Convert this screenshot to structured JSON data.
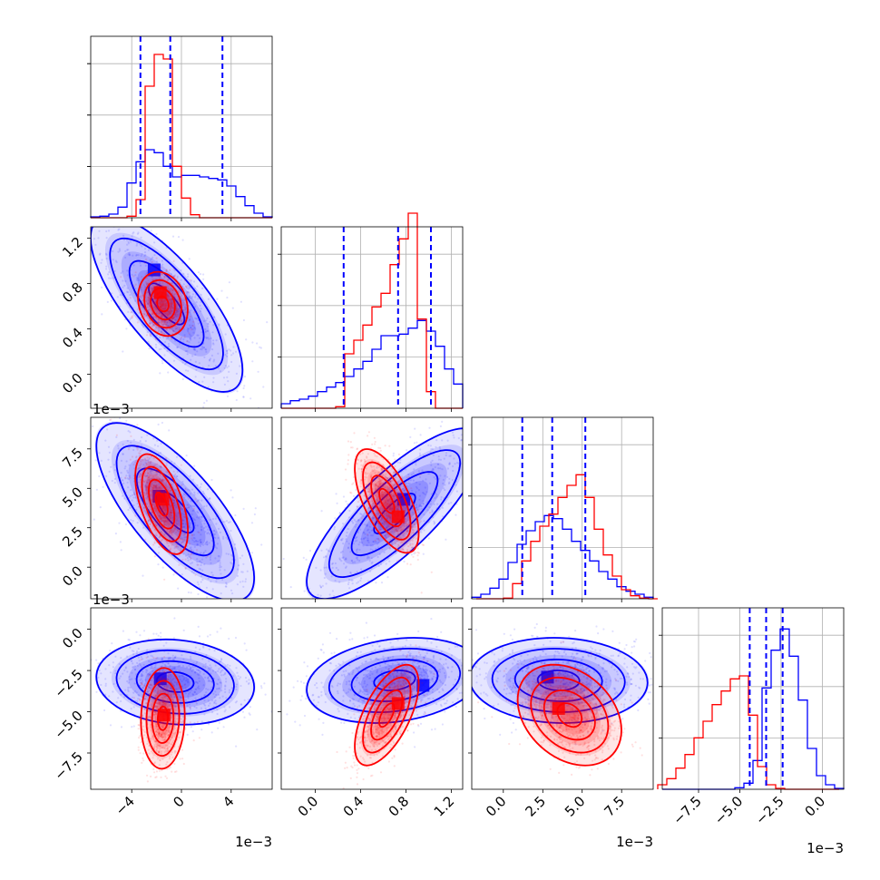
{
  "chart_data": {
    "type": "corner",
    "colors": {
      "blue": "#0000ff",
      "red": "#ff0000"
    },
    "series": [
      {
        "color": "blue",
        "marker": "blue-scatter-and-contours"
      },
      {
        "color": "red",
        "marker": "red-scatter-and-contours"
      }
    ],
    "parameters": [
      {
        "range": [
          -0.0073,
          0.0073
        ],
        "ticks": [
          -0.004,
          0.0,
          0.004
        ],
        "tick_labels": [
          "−4",
          "0",
          "4"
        ],
        "offset_label": "1e−3"
      },
      {
        "range": [
          -0.3,
          1.3
        ],
        "ticks": [
          0.0,
          0.4,
          0.8,
          1.2
        ],
        "tick_labels": [
          "0.0",
          "0.4",
          "0.8",
          "1.2"
        ],
        "offset_label": ""
      },
      {
        "range": [
          -0.002,
          0.0095
        ],
        "ticks": [
          0.0,
          0.0025,
          0.005,
          0.0075
        ],
        "tick_labels": [
          "0.0",
          "2.5",
          "5.0",
          "7.5"
        ],
        "offset_label": "1e−3"
      },
      {
        "range": [
          -0.0097,
          0.0013
        ],
        "ticks": [
          -0.0075,
          -0.005,
          -0.0025,
          0.0
        ],
        "tick_labels": [
          "−7.5",
          "−5.0",
          "−2.5",
          "0.0"
        ],
        "offset_label": "1e−3"
      }
    ],
    "y_offset_labels": [
      {
        "row": 2,
        "text": "1e−3"
      },
      {
        "row": 3,
        "text": "1e−3"
      }
    ],
    "diagonal": [
      {
        "quantiles": [
          -0.0033,
          -0.0009,
          0.0033
        ],
        "blue": [
          0.3,
          0.5,
          1.2,
          3.5,
          11.5,
          18.5,
          22.5,
          21.5,
          17.0,
          13.5,
          14.0,
          14.0,
          13.5,
          13.0,
          12.5,
          10.5,
          7.0,
          4.0,
          1.5,
          0.3
        ],
        "red": [
          0,
          0,
          0,
          0,
          0.5,
          6.0,
          43.5,
          54.0,
          52.5,
          17.0,
          6.5,
          1.0,
          0,
          0,
          0,
          0,
          0,
          0,
          0,
          0
        ]
      },
      {
        "quantiles": [
          0.25,
          0.73,
          1.02
        ],
        "blue": [
          1.5,
          2.5,
          3.0,
          4.0,
          5.5,
          7.0,
          8.5,
          10.5,
          13.0,
          15.5,
          19.5,
          24.0,
          24.0,
          24.5,
          26.5,
          29.0,
          25.5,
          20.5,
          13.0,
          8.0
        ],
        "red": [
          0,
          0,
          0,
          0,
          0,
          0,
          0.5,
          18.0,
          22.5,
          27.5,
          33.5,
          38.0,
          47.5,
          56.0,
          64.5,
          29.5,
          5.5,
          0,
          0,
          0
        ]
      },
      {
        "quantiles": [
          0.0012,
          0.0031,
          0.0052
        ],
        "blue": [
          0.5,
          1.5,
          3.5,
          6.5,
          12.0,
          18.0,
          22.5,
          25.5,
          27.5,
          26.5,
          23.0,
          19.0,
          16.0,
          12.5,
          9.0,
          6.5,
          4.0,
          2.5,
          1.5,
          0.5
        ],
        "red": [
          0,
          0,
          0,
          0.2,
          5.0,
          12.5,
          19.0,
          24.0,
          28.0,
          33.5,
          37.5,
          41.0,
          33.5,
          23.0,
          14.5,
          7.5,
          3.0,
          1.0,
          0.2,
          0
        ],
        "red_offset": 0.5
      },
      {
        "quantiles": [
          -0.0044,
          -0.0034,
          -0.0024
        ],
        "blue": [
          0,
          0,
          0,
          0,
          0,
          0,
          0,
          0,
          0.5,
          2.0,
          9.5,
          33.5,
          46.0,
          53.0,
          44.0,
          29.5,
          13.5,
          4.5,
          1.5,
          0.3
        ],
        "red": [
          1.5,
          3.5,
          7.0,
          11.5,
          17.0,
          22.5,
          28.0,
          32.5,
          36.5,
          37.5,
          24.5,
          7.5,
          1.5,
          0.3,
          0,
          0,
          0,
          0,
          0,
          0
        ],
        "red_offset": -0.5
      }
    ],
    "pairs": [
      {
        "row": 1,
        "col": 0,
        "blue": {
          "center": [
            -0.0012,
            0.62
          ],
          "sx": 0.0026,
          "sy": 0.33,
          "rho": -0.75,
          "peak": [
            -0.0022,
            0.92
          ]
        },
        "red": {
          "center": [
            -0.0015,
            0.62
          ],
          "sx": 0.00085,
          "sy": 0.12,
          "rho": -0.2,
          "peak": [
            -0.0017,
            0.72
          ]
        }
      },
      {
        "row": 2,
        "col": 0,
        "blue": {
          "center": [
            -0.0005,
            0.0035
          ],
          "sx": 0.0027,
          "sy": 0.0024,
          "rho": -0.74,
          "peak": [
            -0.0018,
            0.0045
          ]
        },
        "red": {
          "center": [
            -0.0016,
            0.004
          ],
          "sx": 0.0009,
          "sy": 0.00135,
          "rho": -0.55,
          "peak": [
            -0.0015,
            0.0043
          ]
        }
      },
      {
        "row": 2,
        "col": 1,
        "blue": {
          "center": [
            0.7,
            0.0034
          ],
          "sx": 0.33,
          "sy": 0.0023,
          "rho": 0.8,
          "peak": [
            0.78,
            0.0043
          ]
        },
        "red": {
          "center": [
            0.63,
            0.0042
          ],
          "sx": 0.12,
          "sy": 0.0014,
          "rho": -0.62,
          "peak": [
            0.73,
            0.0032
          ]
        }
      },
      {
        "row": 3,
        "col": 0,
        "blue": {
          "center": [
            -0.0005,
            -0.0032
          ],
          "sx": 0.0027,
          "sy": 0.0011,
          "rho": -0.12,
          "peak": [
            -0.0017,
            -0.003
          ]
        },
        "red": {
          "center": [
            -0.0015,
            -0.0054
          ],
          "sx": 0.00075,
          "sy": 0.0013,
          "rho": 0.05,
          "peak": [
            -0.0014,
            -0.0052
          ]
        }
      },
      {
        "row": 3,
        "col": 1,
        "blue": {
          "center": [
            0.7,
            -0.0031
          ],
          "sx": 0.33,
          "sy": 0.0011,
          "rho": 0.22,
          "peak": [
            0.95,
            -0.0034
          ]
        },
        "red": {
          "center": [
            0.63,
            -0.0052
          ],
          "sx": 0.12,
          "sy": 0.0013,
          "rho": 0.62,
          "peak": [
            0.73,
            -0.0045
          ]
        }
      },
      {
        "row": 3,
        "col": 2,
        "blue": {
          "center": [
            0.0035,
            -0.0031
          ],
          "sx": 0.0024,
          "sy": 0.0011,
          "rho": -0.05,
          "peak": [
            0.0028,
            -0.0029
          ]
        },
        "red": {
          "center": [
            0.0042,
            -0.0052
          ],
          "sx": 0.0014,
          "sy": 0.0013,
          "rho": -0.3,
          "peak": [
            0.0035,
            -0.0048
          ]
        }
      }
    ]
  }
}
